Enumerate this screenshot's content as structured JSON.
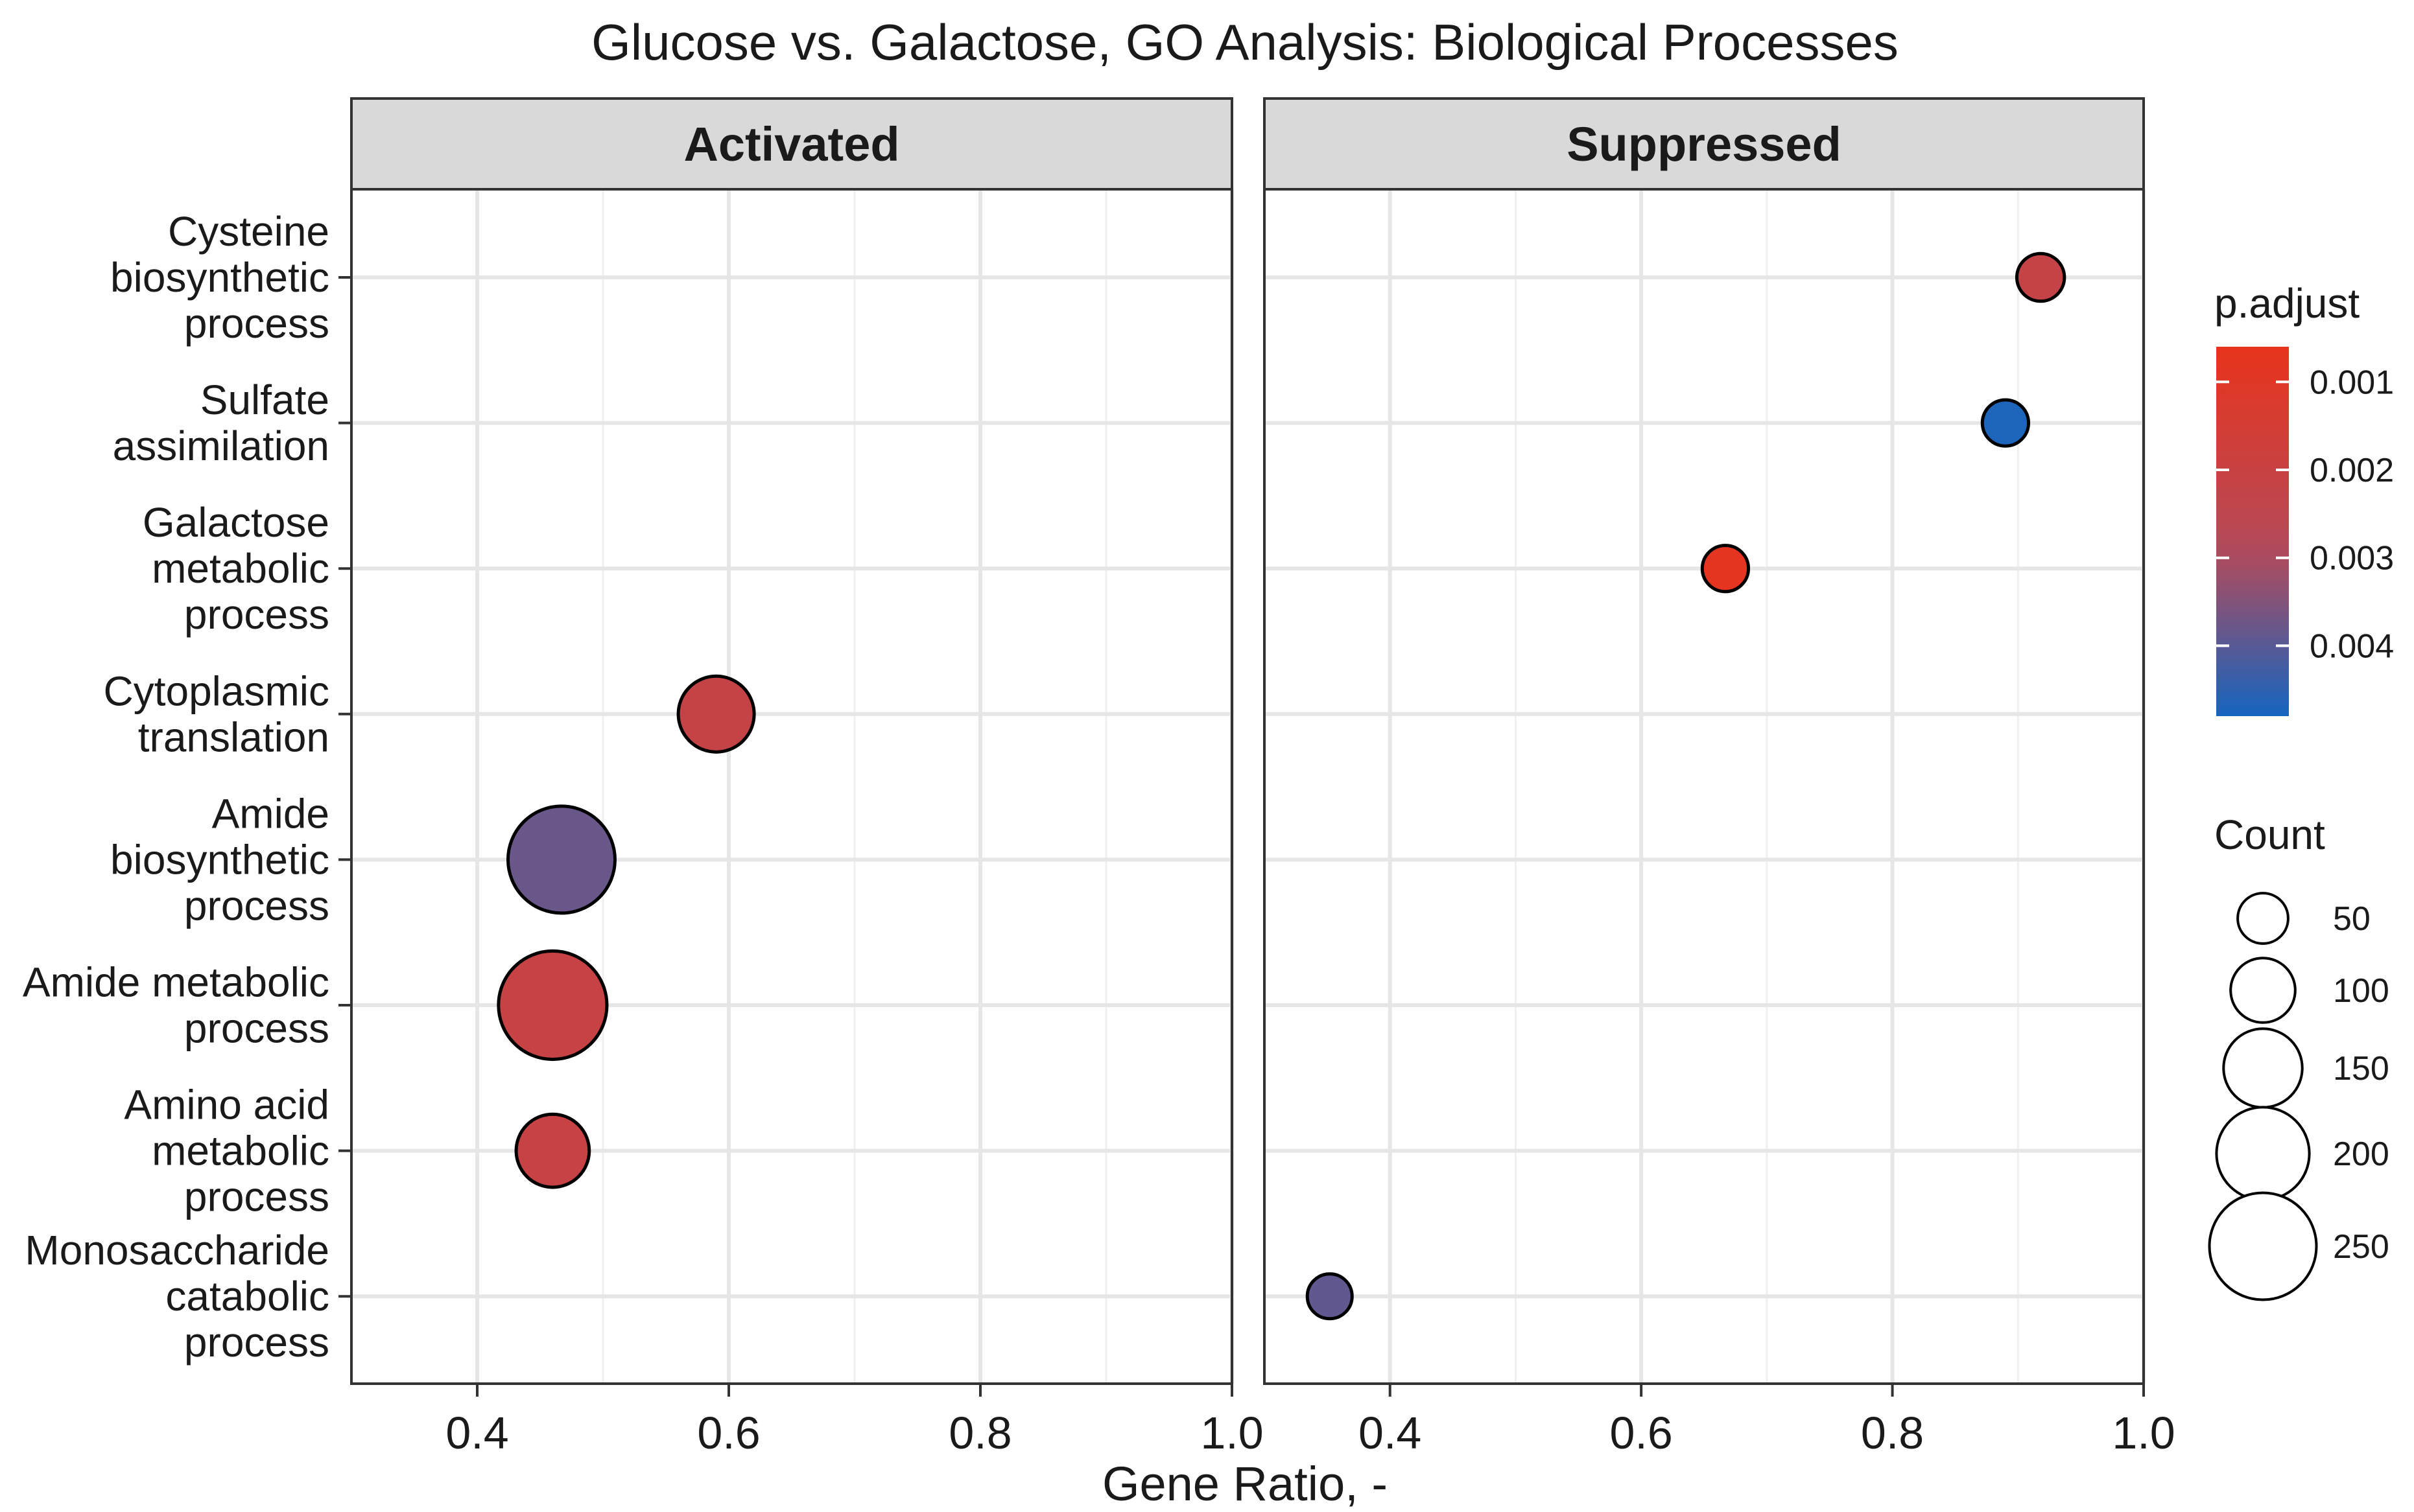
{
  "chart_data": {
    "type": "scatter",
    "title": "Glucose vs. Galactose, GO Analysis: Biological Processes",
    "xlabel": "Gene Ratio, -",
    "ylabel": "",
    "xlim": [
      0.3,
      1.0
    ],
    "x_ticks": [
      "0.4",
      "0.6",
      "0.8",
      "1.0"
    ],
    "x_tick_values": [
      0.4,
      0.6,
      0.8,
      1.0
    ],
    "categories": [
      [
        "Cysteine",
        "biosynthetic",
        "process"
      ],
      [
        "Sulfate",
        "assimilation"
      ],
      [
        "Galactose",
        "metabolic",
        "process"
      ],
      [
        "Cytoplasmic",
        "translation"
      ],
      [
        "Amide",
        "biosynthetic",
        "process"
      ],
      [
        "Amide metabolic",
        "process"
      ],
      [
        "Amino acid",
        "metabolic",
        "process"
      ],
      [
        "Monosaccharide",
        "catabolic",
        "process"
      ]
    ],
    "panels": [
      {
        "label": "Activated",
        "points": [
          {
            "category_index": 3,
            "x": 0.59,
            "count": 140,
            "p_adjust": 0.0022
          },
          {
            "category_index": 4,
            "x": 0.467,
            "count": 250,
            "p_adjust": 0.0038
          },
          {
            "category_index": 5,
            "x": 0.46,
            "count": 255,
            "p_adjust": 0.0021
          },
          {
            "category_index": 6,
            "x": 0.46,
            "count": 130,
            "p_adjust": 0.0021
          }
        ]
      },
      {
        "label": "Suppressed",
        "points": [
          {
            "category_index": 0,
            "x": 0.918,
            "count": 40,
            "p_adjust": 0.0022
          },
          {
            "category_index": 1,
            "x": 0.89,
            "count": 35,
            "p_adjust": 0.0047
          },
          {
            "category_index": 2,
            "x": 0.667,
            "count": 35,
            "p_adjust": 0.00075
          },
          {
            "category_index": 7,
            "x": 0.352,
            "count": 30,
            "p_adjust": 0.0039
          }
        ]
      }
    ],
    "color_legend": {
      "title": "p.adjust",
      "ticks": [
        "0.001",
        "0.002",
        "0.003",
        "0.004"
      ],
      "tick_values": [
        0.001,
        0.002,
        0.003,
        0.004
      ],
      "range": [
        0.0006,
        0.0048
      ],
      "low_color": "#e8341c",
      "high_color": "#1565c0"
    },
    "size_legend": {
      "title": "Count",
      "labels": [
        "50",
        "100",
        "150",
        "200",
        "250"
      ],
      "values": [
        50,
        100,
        150,
        200,
        250
      ]
    },
    "legend_position": "right"
  }
}
